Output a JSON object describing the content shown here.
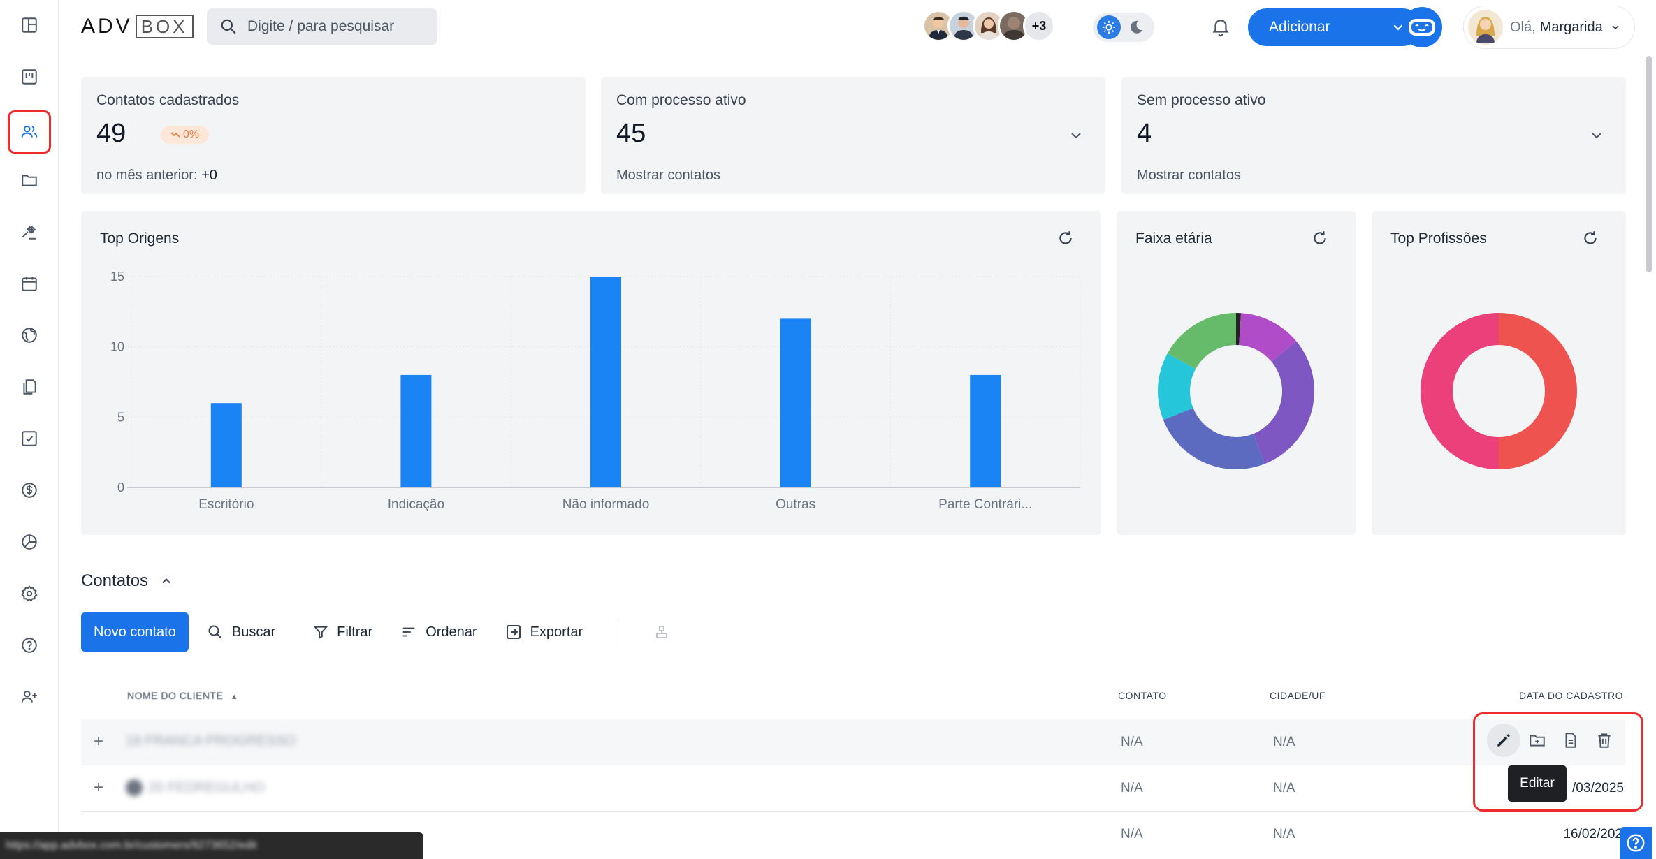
{
  "app": {
    "logo_adv": "ADV",
    "logo_box": "BOX",
    "search_placeholder": "Digite / para pesquisar"
  },
  "header": {
    "avatars_more": "+3",
    "add_button": "Adicionar",
    "greeting_prefix": "Olá,",
    "user_name": "Margarida"
  },
  "stats": [
    {
      "title": "Contatos cadastrados",
      "value": "49",
      "badge": "0%",
      "sub_label": "no mês anterior:",
      "sub_value": "+0"
    },
    {
      "title": "Com processo ativo",
      "value": "45",
      "sub_label": "Mostrar contatos"
    },
    {
      "title": "Sem processo ativo",
      "value": "4",
      "sub_label": "Mostrar contatos"
    }
  ],
  "charts": {
    "top_origens_title": "Top Origens",
    "faixa_etaria_title": "Faixa etária",
    "top_profissoes_title": "Top Profissões"
  },
  "chart_data": [
    {
      "type": "bar",
      "title": "Top Origens",
      "categories": [
        "Escritório",
        "Indicação",
        "Não informado",
        "Outras",
        "Parte Contrári..."
      ],
      "values": [
        6,
        8,
        15,
        12,
        8
      ],
      "yticks": [
        0,
        5,
        10,
        15
      ],
      "ylim": [
        0,
        15
      ],
      "grid": true,
      "color": "#1a84f5"
    },
    {
      "type": "pie",
      "title": "Faixa etária",
      "donut": true,
      "values": [
        1,
        13,
        30,
        25,
        14,
        17
      ],
      "colors": [
        "#222222",
        "#b04cc8",
        "#7e57c2",
        "#5c6bc0",
        "#26c6da",
        "#66bb6a"
      ]
    },
    {
      "type": "pie",
      "title": "Top Profissões",
      "donut": true,
      "values": [
        50,
        50
      ],
      "colors": [
        "#ef5350",
        "#ec407a"
      ]
    }
  ],
  "contacts": {
    "section_title": "Contatos",
    "new_contact": "Novo contato",
    "search": "Buscar",
    "filter": "Filtrar",
    "sort": "Ordenar",
    "export": "Exportar",
    "columns": {
      "name": "Nome do cliente",
      "contact": "Contato",
      "city": "Cidade/UF",
      "date": "Data do cadastro"
    },
    "rows": [
      {
        "name": "18 FRANCA PROGRESSO",
        "contact": "N/A",
        "city": "N/A",
        "date": ""
      },
      {
        "name": "20 FEDREGULHO",
        "contact": "N/A",
        "city": "N/A",
        "date": "/03/2025"
      },
      {
        "name": "",
        "contact": "N/A",
        "city": "N/A",
        "date": "16/02/202"
      }
    ],
    "tooltip": "Editar"
  },
  "status_bar": {
    "url": "https://app.advbox.com.br/customers/9273652/edit"
  }
}
